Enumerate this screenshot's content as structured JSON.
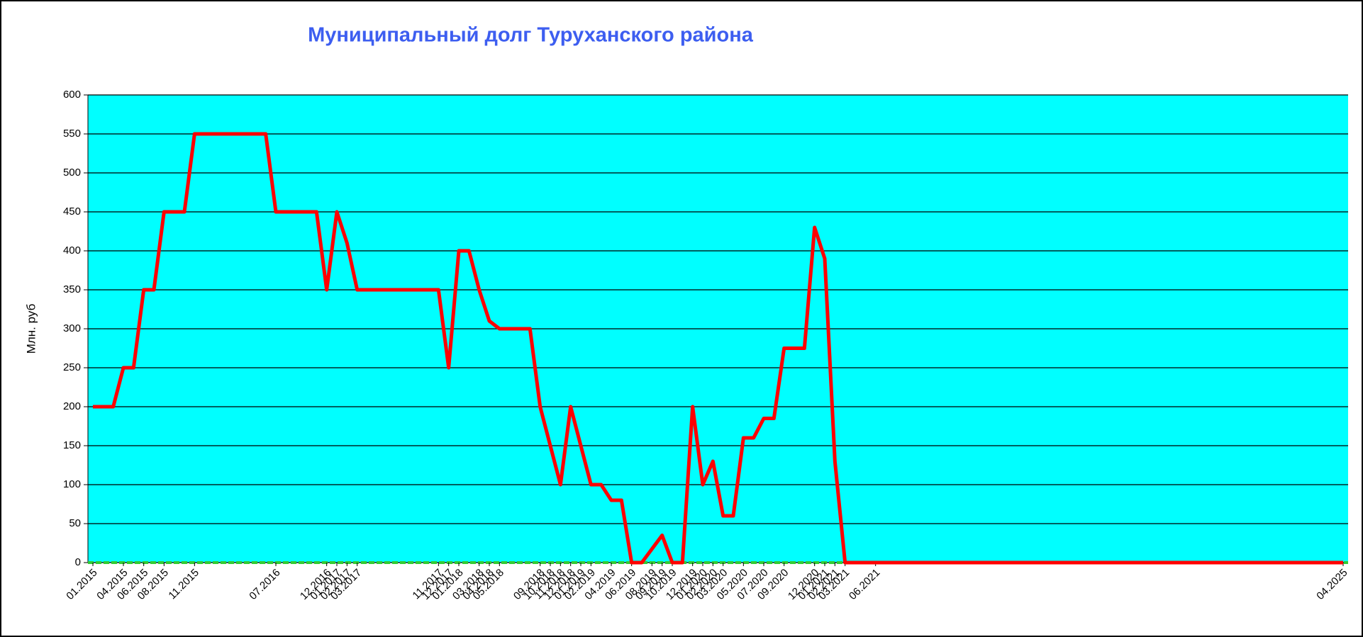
{
  "chart_data": {
    "type": "line",
    "title": "Муниципальный долг Туруханского района",
    "y_label": "Млн. руб",
    "x": [
      "01.2015",
      "03.2015",
      "04.2015",
      "05.2015",
      "06.2015",
      "07.2015",
      "08.2015",
      "10.2015",
      "11.2015",
      "06.2016",
      "07.2016",
      "11.2016",
      "12.2016",
      "01.2017",
      "02.2017",
      "03.2017",
      "11.2017",
      "12.2017",
      "01.2018",
      "02.2018",
      "03.2018",
      "04.2018",
      "05.2018",
      "08.2018",
      "09.2018",
      "10.2018",
      "11.2018",
      "12.2018",
      "01.2019",
      "02.2019",
      "03.2019",
      "04.2019",
      "05.2019",
      "06.2019",
      "07.2019",
      "09.2019",
      "10.2019",
      "11.2019",
      "12.2019",
      "01.2020",
      "02.2020",
      "03.2020",
      "04.2020",
      "05.2020",
      "06.2020",
      "07.2020",
      "08.2020",
      "09.2020",
      "11.2020",
      "12.2020",
      "01.2021",
      "02.2021",
      "03.2021",
      "04.2025"
    ],
    "series": [
      {
        "name": "Муниципальный долг",
        "color": "#ff0000",
        "values": [
          200,
          200,
          250,
          250,
          350,
          350,
          450,
          450,
          550,
          550,
          450,
          450,
          350,
          450,
          410,
          350,
          350,
          250,
          400,
          400,
          350,
          310,
          300,
          300,
          200,
          150,
          100,
          200,
          150,
          100,
          100,
          80,
          80,
          0,
          0,
          35,
          0,
          0,
          200,
          100,
          130,
          60,
          60,
          160,
          160,
          185,
          185,
          275,
          275,
          430,
          390,
          130,
          0,
          0
        ]
      }
    ],
    "xlim": [
      "01.2015",
      "04.2025"
    ],
    "xticks": [
      "01.2015",
      "04.2015",
      "06.2015",
      "08.2015",
      "11.2015",
      "07.2016",
      "12.2016",
      "01.2017",
      "02.2017",
      "03.2017",
      "11.2017",
      "12.2017",
      "01.2018",
      "03.2018",
      "04.2018",
      "05.2018",
      "09.2018",
      "10.2018",
      "11.2018",
      "12.2018",
      "01.2019",
      "02.2019",
      "04.2019",
      "06.2019",
      "08.2019",
      "09.2019",
      "10.2019",
      "12.2019",
      "01.2020",
      "02.2020",
      "03.2020",
      "05.2020",
      "07.2020",
      "09.2020",
      "12.2020",
      "01.2021",
      "02.2021",
      "03.2021",
      "06.2021",
      "04.2025"
    ],
    "ylim": [
      0,
      600
    ],
    "yticks": [
      0,
      50,
      100,
      150,
      200,
      250,
      300,
      350,
      400,
      450,
      500,
      550,
      600
    ],
    "grid": true,
    "background": "#00ffff"
  }
}
